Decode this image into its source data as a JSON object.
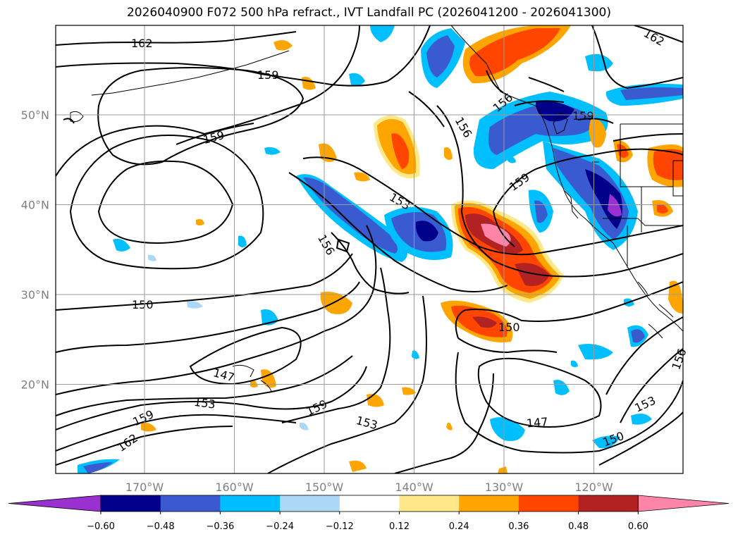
{
  "title": "2026040900 F072 500 hPa refract., IVT Landfall PC (2026041200 - 2026041300)",
  "axes": {
    "lat_labels": [
      "50°N",
      "40°N",
      "30°N",
      "20°N"
    ],
    "lon_labels": [
      "170°W",
      "160°W",
      "150°W",
      "140°W",
      "130°W",
      "120°W"
    ],
    "lat_values": [
      50,
      40,
      30,
      20
    ],
    "lon_values": [
      -170,
      -160,
      -150,
      -140,
      -130,
      -120
    ]
  },
  "colorbar": {
    "ticks": [
      "−0.60",
      "−0.48",
      "−0.36",
      "−0.24",
      "−0.12",
      "0.12",
      "0.24",
      "0.36",
      "0.48",
      "0.60"
    ],
    "colors": [
      "#9b30d0",
      "#00008b",
      "#3a5bd0",
      "#00bfff",
      "#add8f5",
      "#ffffff",
      "#ffe88a",
      "#ffa500",
      "#ff4500",
      "#b22222",
      "#ff85a8"
    ]
  },
  "contour_labels": [
    {
      "text": "162",
      "id": "c162a"
    },
    {
      "text": "159",
      "id": "c159a"
    },
    {
      "text": "162",
      "id": "c162b"
    },
    {
      "text": "159",
      "id": "c159b"
    },
    {
      "text": "156",
      "id": "c156a"
    },
    {
      "text": "156",
      "id": "c156b"
    },
    {
      "text": "159",
      "id": "c159c"
    },
    {
      "text": "153",
      "id": "c153a"
    },
    {
      "text": "159",
      "id": "c159d"
    },
    {
      "text": "156",
      "id": "c156c"
    },
    {
      "text": "150",
      "id": "c150a"
    },
    {
      "text": "150",
      "id": "c150b"
    },
    {
      "text": "147",
      "id": "c147a"
    },
    {
      "text": "153",
      "id": "c153b"
    },
    {
      "text": "159",
      "id": "c159e"
    },
    {
      "text": "162",
      "id": "c162c"
    },
    {
      "text": "159",
      "id": "c159f"
    },
    {
      "text": "153",
      "id": "c153c"
    },
    {
      "text": "147",
      "id": "c147b"
    },
    {
      "text": "153",
      "id": "c153d"
    },
    {
      "text": "150",
      "id": "c150c"
    },
    {
      "text": "156",
      "id": "c156d"
    }
  ]
}
